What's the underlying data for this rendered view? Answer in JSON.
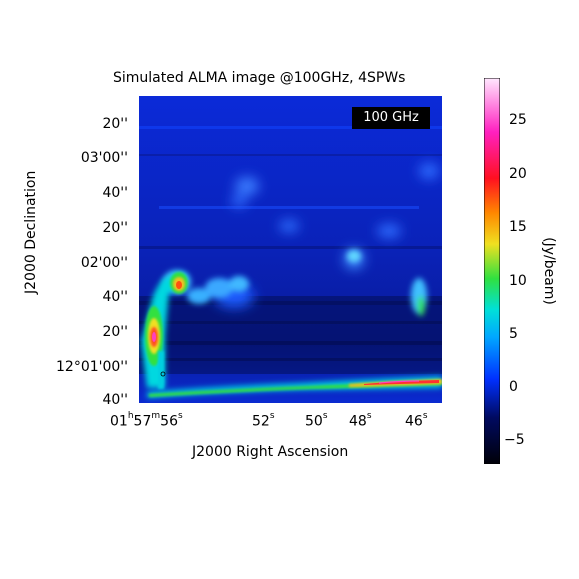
{
  "title": "Simulated ALMA image @100GHz, 4SPWs",
  "badge_label": "100 GHz",
  "axes": {
    "xlabel": "J2000 Right Ascension",
    "ylabel": "J2000 Declination"
  },
  "y_ticks": [
    "20''",
    "03'00''",
    "40''",
    "20''",
    "02'00''",
    "40''",
    "20''",
    "12°01'00''",
    "40''"
  ],
  "x_ticks": [
    {
      "h": "01",
      "m": "57",
      "s": "56"
    },
    {
      "s": "52"
    },
    {
      "s": "50"
    },
    {
      "s": "48"
    },
    {
      "s": "46"
    }
  ],
  "colorbar": {
    "label": "(Jy/beam)",
    "ticks": [
      "25",
      "20",
      "15",
      "10",
      "5",
      "0",
      "−5"
    ],
    "range": [
      -7.5,
      28.5
    ]
  },
  "chart_data": {
    "type": "heatmap",
    "title": "Simulated ALMA image @100GHz, 4SPWs",
    "xlabel": "J2000 Right Ascension",
    "ylabel": "J2000 Declination",
    "colorbar_label": "(Jy/beam)",
    "color_range": [
      -7.5,
      28.5
    ],
    "colors": {
      "low": "#000010",
      "mid": "#0030ff",
      "cyan": "#00e0d8",
      "green": "#30e040",
      "yellow": "#f0e020",
      "orange": "#ff8800",
      "red": "#ff1020",
      "magenta": "#ff20c0",
      "high": "#ffe8ff"
    }
  }
}
